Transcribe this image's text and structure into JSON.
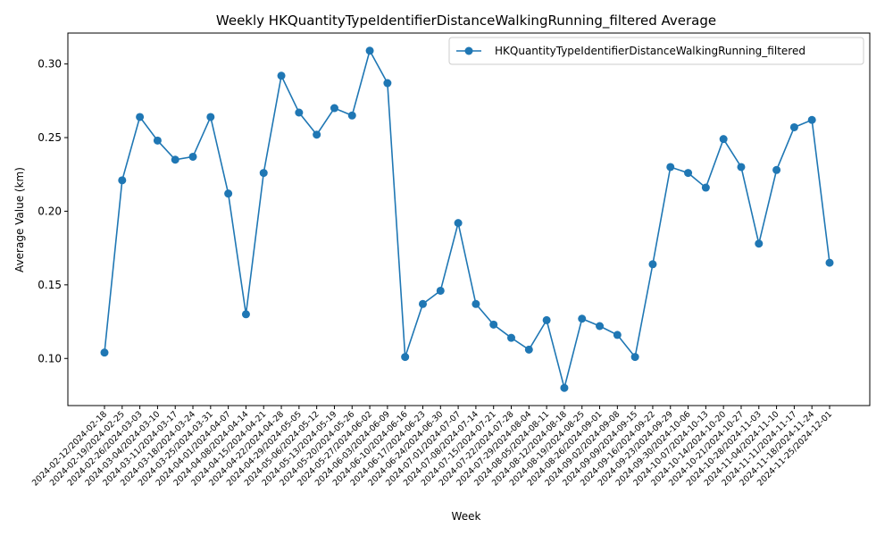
{
  "chart_data": {
    "type": "line",
    "title": "Weekly HKQuantityTypeIdentifierDistanceWalkingRunning_filtered Average",
    "xlabel": "Week",
    "ylabel": "Average Value (km)",
    "ylim": [
      0.068,
      0.321
    ],
    "yticks": [
      "0.10",
      "0.15",
      "0.20",
      "0.25",
      "0.30"
    ],
    "grid": false,
    "legend_position": "top-right",
    "categories": [
      "2024-02-12/2024-02-18",
      "2024-02-19/2024-02-25",
      "2024-02-26/2024-03-03",
      "2024-03-04/2024-03-10",
      "2024-03-11/2024-03-17",
      "2024-03-18/2024-03-24",
      "2024-03-25/2024-03-31",
      "2024-04-01/2024-04-07",
      "2024-04-08/2024-04-14",
      "2024-04-15/2024-04-21",
      "2024-04-22/2024-04-28",
      "2024-04-29/2024-05-05",
      "2024-05-06/2024-05-12",
      "2024-05-13/2024-05-19",
      "2024-05-20/2024-05-26",
      "2024-05-27/2024-06-02",
      "2024-06-03/2024-06-09",
      "2024-06-10/2024-06-16",
      "2024-06-17/2024-06-23",
      "2024-06-24/2024-06-30",
      "2024-07-01/2024-07-07",
      "2024-07-08/2024-07-14",
      "2024-07-15/2024-07-21",
      "2024-07-22/2024-07-28",
      "2024-07-29/2024-08-04",
      "2024-08-05/2024-08-11",
      "2024-08-12/2024-08-18",
      "2024-08-19/2024-08-25",
      "2024-08-26/2024-09-01",
      "2024-09-02/2024-09-08",
      "2024-09-09/2024-09-15",
      "2024-09-16/2024-09-22",
      "2024-09-23/2024-09-29",
      "2024-09-30/2024-10-06",
      "2024-10-07/2024-10-13",
      "2024-10-14/2024-10-20",
      "2024-10-21/2024-10-27",
      "2024-10-28/2024-11-03",
      "2024-11-04/2024-11-10",
      "2024-11-11/2024-11-17",
      "2024-11-18/2024-11-24",
      "2024-11-25/2024-12-01"
    ],
    "series": [
      {
        "name": "HKQuantityTypeIdentifierDistanceWalkingRunning_filtered",
        "color": "#1f77b4",
        "values": [
          0.104,
          0.221,
          0.264,
          0.248,
          0.235,
          0.237,
          0.264,
          0.212,
          0.13,
          0.226,
          0.292,
          0.267,
          0.252,
          0.27,
          0.265,
          0.309,
          0.287,
          0.101,
          0.137,
          0.146,
          0.192,
          0.137,
          0.123,
          0.114,
          0.106,
          0.126,
          0.08,
          0.127,
          0.122,
          0.116,
          0.101,
          0.164,
          0.23,
          0.226,
          0.216,
          0.249,
          0.23,
          0.178,
          0.228,
          0.257,
          0.262,
          0.165
        ]
      }
    ]
  }
}
